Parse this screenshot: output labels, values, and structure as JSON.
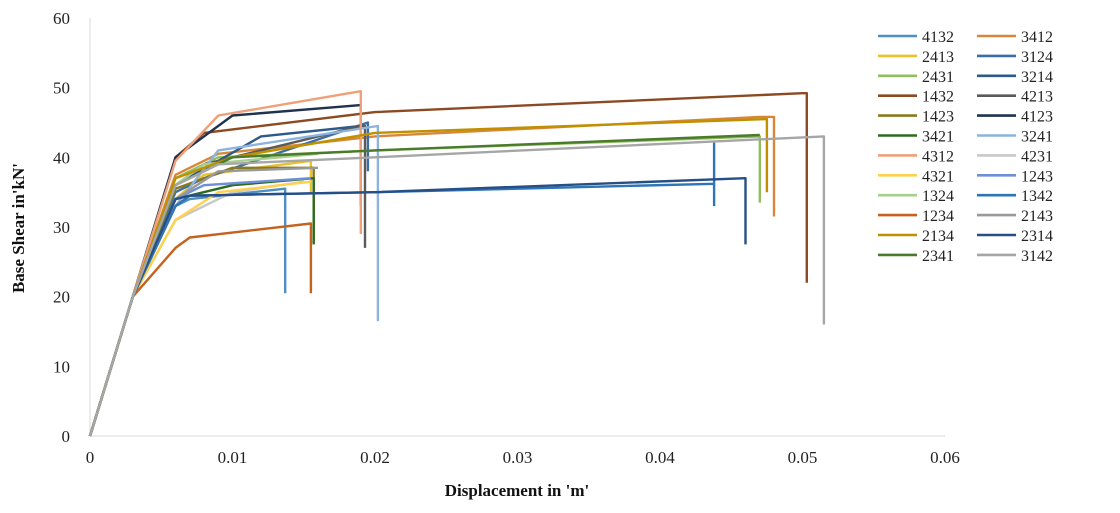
{
  "chart_data": {
    "type": "line",
    "title": "",
    "xlabel": "Displacement in 'm'",
    "ylabel": "Base Shear in'kN'",
    "xlim": [
      0,
      0.06
    ],
    "ylim": [
      0,
      60
    ],
    "x_ticks": [
      "0",
      "0.01",
      "0.02",
      "0.03",
      "0.04",
      "0.05",
      "0.06"
    ],
    "y_ticks": [
      "0",
      "10",
      "20",
      "30",
      "40",
      "50",
      "60"
    ],
    "grid": false,
    "legend_position": "right",
    "series": [
      {
        "name": "4132",
        "color": "#4E8FC4",
        "points": [
          [
            0,
            0
          ],
          [
            0.003,
            20
          ],
          [
            0.006,
            33
          ],
          [
            0.007,
            34
          ],
          [
            0.0137,
            35.5
          ],
          [
            0.0137,
            20.5
          ]
        ]
      },
      {
        "name": "3412",
        "color": "#D8873A",
        "points": [
          [
            0,
            0
          ],
          [
            0.003,
            20
          ],
          [
            0.006,
            37.5
          ],
          [
            0.009,
            40.5
          ],
          [
            0.02,
            43
          ],
          [
            0.047,
            45.8
          ],
          [
            0.048,
            45.8
          ],
          [
            0.048,
            31.5
          ]
        ]
      },
      {
        "name": "2413",
        "color": "#E9C22E",
        "points": [
          [
            0,
            0
          ],
          [
            0.003,
            20
          ],
          [
            0.006,
            34
          ],
          [
            0.008,
            37.5
          ],
          [
            0.0155,
            39.5
          ],
          [
            0.0155,
            35
          ]
        ]
      },
      {
        "name": "3124",
        "color": "#3C6EA6",
        "points": [
          [
            0,
            0
          ],
          [
            0.003,
            20
          ],
          [
            0.006,
            35
          ],
          [
            0.008,
            37
          ],
          [
            0.0195,
            45
          ],
          [
            0.0195,
            38
          ]
        ]
      },
      {
        "name": "2431",
        "color": "#8FBF5C",
        "points": [
          [
            0,
            0
          ],
          [
            0.003,
            20
          ],
          [
            0.006,
            37
          ],
          [
            0.009,
            40
          ],
          [
            0.02,
            41
          ],
          [
            0.047,
            43
          ],
          [
            0.047,
            33.5
          ]
        ]
      },
      {
        "name": "3214",
        "color": "#2E5A8A",
        "points": [
          [
            0,
            0
          ],
          [
            0.003,
            20
          ],
          [
            0.006,
            36
          ],
          [
            0.012,
            43
          ],
          [
            0.019,
            44.5
          ]
        ]
      },
      {
        "name": "1432",
        "color": "#8B4A22",
        "points": [
          [
            0,
            0
          ],
          [
            0.003,
            20
          ],
          [
            0.006,
            40
          ],
          [
            0.008,
            43.5
          ],
          [
            0.02,
            46.5
          ],
          [
            0.05,
            49.2
          ],
          [
            0.0503,
            49.2
          ],
          [
            0.0503,
            22
          ]
        ]
      },
      {
        "name": "4213",
        "color": "#5A5A5A",
        "points": [
          [
            0,
            0
          ],
          [
            0.003,
            20
          ],
          [
            0.006,
            36
          ],
          [
            0.008,
            39
          ],
          [
            0.019,
            44.5
          ],
          [
            0.0193,
            44.5
          ],
          [
            0.0193,
            27
          ]
        ]
      },
      {
        "name": "1423",
        "color": "#8A7A1E",
        "points": [
          [
            0,
            0
          ],
          [
            0.003,
            20
          ],
          [
            0.006,
            35.5
          ],
          [
            0.01,
            38.5
          ],
          [
            0.0157,
            38.5
          ],
          [
            0.0157,
            28
          ]
        ]
      },
      {
        "name": "4123",
        "color": "#1F3350",
        "points": [
          [
            0,
            0
          ],
          [
            0.003,
            20
          ],
          [
            0.006,
            40
          ],
          [
            0.01,
            46
          ],
          [
            0.019,
            47.5
          ],
          [
            0.019,
            33
          ]
        ]
      },
      {
        "name": "3421",
        "color": "#2E6B1E",
        "points": [
          [
            0,
            0
          ],
          [
            0.003,
            20
          ],
          [
            0.006,
            34
          ],
          [
            0.01,
            36
          ],
          [
            0.0157,
            37
          ],
          [
            0.0157,
            27.5
          ]
        ]
      },
      {
        "name": "3241",
        "color": "#8CB4DE",
        "points": [
          [
            0,
            0
          ],
          [
            0.003,
            20
          ],
          [
            0.006,
            33
          ],
          [
            0.009,
            41
          ],
          [
            0.0202,
            44.5
          ],
          [
            0.0202,
            16.5
          ]
        ]
      },
      {
        "name": "4312",
        "color": "#F0A078",
        "points": [
          [
            0,
            0
          ],
          [
            0.003,
            20
          ],
          [
            0.006,
            39.5
          ],
          [
            0.009,
            46
          ],
          [
            0.019,
            49.5
          ],
          [
            0.019,
            29
          ]
        ]
      },
      {
        "name": "4231",
        "color": "#C8C8C8",
        "points": [
          [
            0,
            0
          ],
          [
            0.003,
            20
          ],
          [
            0.006,
            31
          ],
          [
            0.01,
            35
          ],
          [
            0.015,
            36.5
          ]
        ]
      },
      {
        "name": "4321",
        "color": "#FFD24D",
        "points": [
          [
            0,
            0
          ],
          [
            0.003,
            20
          ],
          [
            0.006,
            31
          ],
          [
            0.009,
            35
          ],
          [
            0.0155,
            36.5
          ]
        ]
      },
      {
        "name": "1243",
        "color": "#6E8FD8",
        "points": [
          [
            0,
            0
          ],
          [
            0.003,
            20
          ],
          [
            0.006,
            34
          ],
          [
            0.008,
            36
          ],
          [
            0.0155,
            37
          ]
        ]
      },
      {
        "name": "1324",
        "color": "#A8D08D",
        "points": [
          [
            0,
            0
          ],
          [
            0.003,
            20
          ],
          [
            0.006,
            36
          ],
          [
            0.008,
            39
          ],
          [
            0.016,
            40.5
          ]
        ]
      },
      {
        "name": "1342",
        "color": "#2E75B6",
        "points": [
          [
            0,
            0
          ],
          [
            0.003,
            20
          ],
          [
            0.006,
            33
          ],
          [
            0.007,
            34.5
          ],
          [
            0.02,
            35
          ],
          [
            0.0438,
            36.2
          ],
          [
            0.0438,
            42
          ],
          [
            0.0438,
            33
          ]
        ]
      },
      {
        "name": "1234",
        "color": "#C5621E",
        "points": [
          [
            0,
            0
          ],
          [
            0.003,
            20
          ],
          [
            0.006,
            27
          ],
          [
            0.007,
            28.5
          ],
          [
            0.0155,
            30.5
          ],
          [
            0.0155,
            20.5
          ]
        ]
      },
      {
        "name": "2143",
        "color": "#999999",
        "points": [
          [
            0,
            0
          ],
          [
            0.003,
            20
          ],
          [
            0.006,
            34
          ],
          [
            0.009,
            38
          ],
          [
            0.016,
            38.5
          ]
        ]
      },
      {
        "name": "2134",
        "color": "#BF9000",
        "points": [
          [
            0,
            0
          ],
          [
            0.003,
            20
          ],
          [
            0.006,
            37
          ],
          [
            0.01,
            40
          ],
          [
            0.02,
            43.5
          ],
          [
            0.0475,
            45.5
          ],
          [
            0.0475,
            35
          ]
        ]
      },
      {
        "name": "2314",
        "color": "#264F86",
        "points": [
          [
            0,
            0
          ],
          [
            0.003,
            20
          ],
          [
            0.006,
            34
          ],
          [
            0.007,
            34.5
          ],
          [
            0.02,
            35
          ],
          [
            0.046,
            37
          ],
          [
            0.046,
            27.5
          ]
        ]
      },
      {
        "name": "2341",
        "color": "#4A7B2A",
        "points": [
          [
            0,
            0
          ],
          [
            0.003,
            20
          ],
          [
            0.006,
            36
          ],
          [
            0.01,
            40
          ],
          [
            0.02,
            41
          ],
          [
            0.047,
            43.2
          ]
        ]
      },
      {
        "name": "3142",
        "color": "#A6A6A6",
        "points": [
          [
            0,
            0
          ],
          [
            0.003,
            20
          ],
          [
            0.006,
            36
          ],
          [
            0.009,
            39
          ],
          [
            0.02,
            40
          ],
          [
            0.0515,
            43
          ],
          [
            0.0515,
            16
          ]
        ]
      }
    ]
  }
}
